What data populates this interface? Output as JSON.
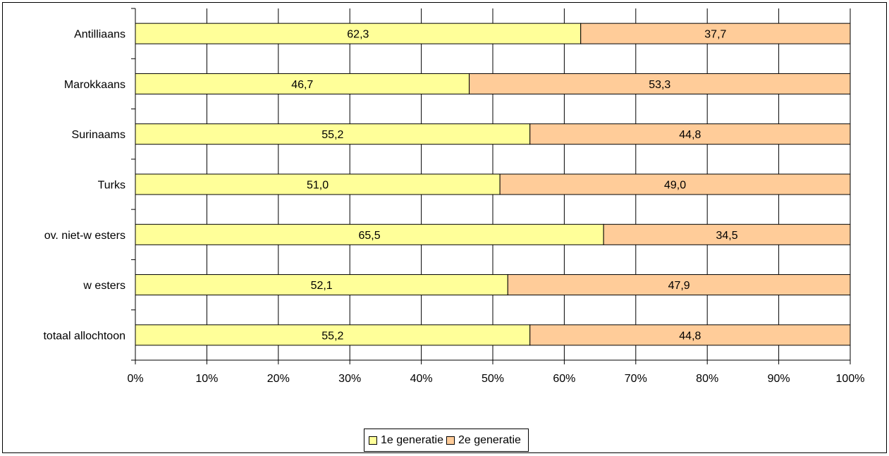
{
  "chart_data": {
    "type": "bar",
    "orientation": "horizontal",
    "stacked": "percent",
    "categories": [
      "Antilliaans",
      "Marokkaans",
      "Surinaams",
      "Turks",
      "ov. niet-w esters",
      "w esters",
      "totaal allochtoon"
    ],
    "series": [
      {
        "name": "1e generatie",
        "color": "#ffff99",
        "values": [
          62.3,
          46.7,
          55.2,
          51.0,
          65.5,
          52.1,
          55.2
        ],
        "labels": [
          "62,3",
          "46,7",
          "55,2",
          "51,0",
          "65,5",
          "52,1",
          "55,2"
        ]
      },
      {
        "name": "2e generatie",
        "color": "#ffcc99",
        "values": [
          37.7,
          53.3,
          44.8,
          49.0,
          34.5,
          47.9,
          44.8
        ],
        "labels": [
          "37,7",
          "53,3",
          "44,8",
          "49,0",
          "34,5",
          "47,9",
          "44,8"
        ]
      }
    ],
    "xlim": [
      0,
      100
    ],
    "xticks": [
      "0%",
      "10%",
      "20%",
      "30%",
      "40%",
      "50%",
      "60%",
      "70%",
      "80%",
      "90%",
      "100%"
    ],
    "grid": true,
    "legend_position": "bottom"
  }
}
